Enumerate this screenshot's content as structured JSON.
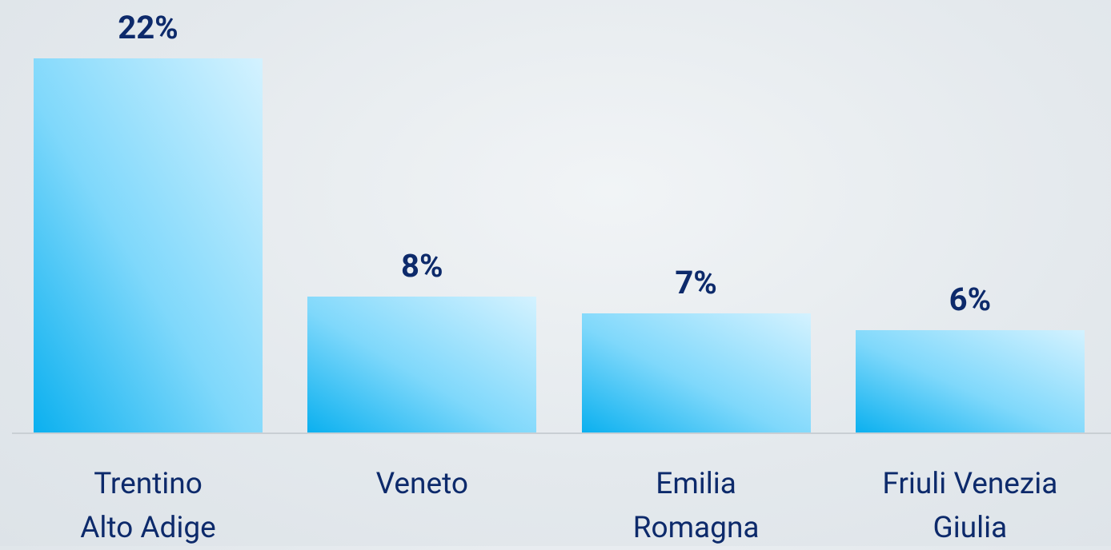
{
  "chart_data": {
    "type": "bar",
    "categories": [
      "Trentino\nAlto Adige",
      "Veneto",
      "Emilia\nRomagna",
      "Friuli Venezia\nGiulia"
    ],
    "values": [
      22,
      8,
      7,
      6
    ],
    "value_labels": [
      "22%",
      "8%",
      "7%",
      "6%"
    ],
    "color": "#0bb0ef"
  }
}
